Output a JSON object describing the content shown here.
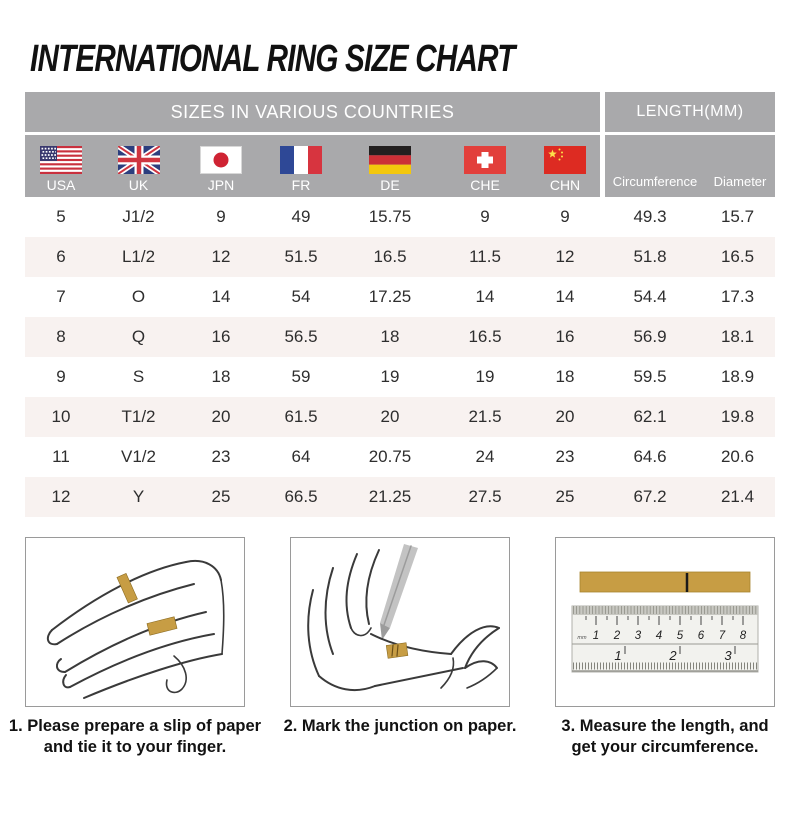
{
  "title": "INTERNATIONAL RING SIZE CHART",
  "chart_data": {
    "type": "table",
    "title": "INTERNATIONAL RING SIZE CHART",
    "column_groups": [
      {
        "label": "SIZES IN VARIOUS COUNTRIES",
        "span": 7
      },
      {
        "label": "LENGTH(MM)",
        "span": 2
      }
    ],
    "columns": [
      "USA",
      "UK",
      "JPN",
      "FR",
      "DE",
      "CHE",
      "CHN",
      "Circumference",
      "Diameter"
    ],
    "rows": [
      [
        "5",
        "J1/2",
        "9",
        "49",
        "15.75",
        "9",
        "9",
        "49.3",
        "15.7"
      ],
      [
        "6",
        "L1/2",
        "12",
        "51.5",
        "16.5",
        "11.5",
        "12",
        "51.8",
        "16.5"
      ],
      [
        "7",
        "O",
        "14",
        "54",
        "17.25",
        "14",
        "14",
        "54.4",
        "17.3"
      ],
      [
        "8",
        "Q",
        "16",
        "56.5",
        "18",
        "16.5",
        "16",
        "56.9",
        "18.1"
      ],
      [
        "9",
        "S",
        "18",
        "59",
        "19",
        "19",
        "18",
        "59.5",
        "18.9"
      ],
      [
        "10",
        "T1/2",
        "20",
        "61.5",
        "20",
        "21.5",
        "20",
        "62.1",
        "19.8"
      ],
      [
        "11",
        "V1/2",
        "23",
        "64",
        "20.75",
        "24",
        "23",
        "64.6",
        "20.6"
      ],
      [
        "12",
        "Y",
        "25",
        "66.5",
        "21.25",
        "27.5",
        "25",
        "67.2",
        "21.4"
      ]
    ]
  },
  "flags": [
    {
      "icon": "usa-flag-icon"
    },
    {
      "icon": "uk-flag-icon"
    },
    {
      "icon": "japan-flag-icon"
    },
    {
      "icon": "france-flag-icon"
    },
    {
      "icon": "germany-flag-icon"
    },
    {
      "icon": "switzerland-flag-icon"
    },
    {
      "icon": "china-flag-icon"
    }
  ],
  "instructions": [
    {
      "text": "1. Please prepare a slip of paper and tie it to your finger."
    },
    {
      "text": "2. Mark the junction on paper."
    },
    {
      "text": "3. Measure the length, and get your circumference."
    }
  ],
  "ruler": {
    "unit_label": "mm",
    "cm_labels": [
      "1",
      "2",
      "3",
      "4",
      "5",
      "6",
      "7",
      "8"
    ],
    "inch_labels": [
      "1",
      "2",
      "3"
    ]
  },
  "colors": {
    "header_bg": "#a9a9ab",
    "stripe_bg": "#f8f2f0",
    "paper_strip": "#c79d44",
    "text": "#2e2e2e"
  }
}
